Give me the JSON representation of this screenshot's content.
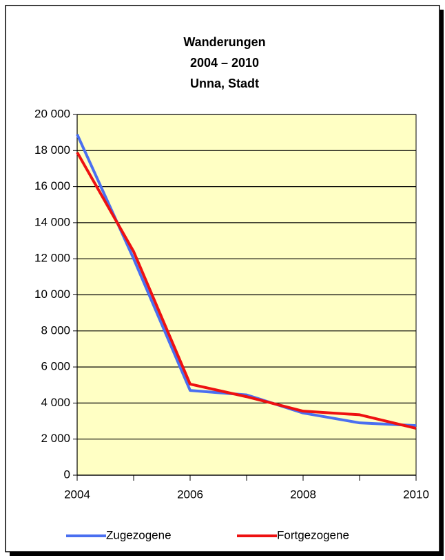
{
  "chart_data": {
    "type": "line",
    "title": [
      "Wanderungen",
      "2004 – 2010",
      "Unna, Stadt"
    ],
    "categories": [
      "2004",
      null,
      "2006",
      null,
      "2008",
      null,
      "2010"
    ],
    "series": [
      {
        "name": "Zugezogene",
        "color": "#4a6ff0",
        "values": [
          18900,
          12000,
          4700,
          4450,
          3450,
          2900,
          2750
        ]
      },
      {
        "name": "Fortgezogene",
        "color": "#ee1111",
        "values": [
          17900,
          12400,
          5050,
          4350,
          3550,
          3350,
          2600
        ]
      }
    ],
    "ylim": [
      0,
      20000
    ],
    "yticks": [
      0,
      {
        "value": 2000,
        "label": "2 000"
      },
      {
        "value": 4000,
        "label": "4 000"
      },
      {
        "value": 6000,
        "label": "6 000"
      },
      {
        "value": 8000,
        "label": "8 000"
      },
      {
        "value": 10000,
        "label": "10 000"
      },
      {
        "value": 12000,
        "label": "12 000"
      },
      {
        "value": 14000,
        "label": "14 000"
      },
      {
        "value": 16000,
        "label": "16 000"
      },
      {
        "value": 18000,
        "label": "18 000"
      },
      {
        "value": 20000,
        "label": "20 000"
      }
    ],
    "grid": true,
    "plot_color": "#ffffc4",
    "legend": "bottom"
  }
}
